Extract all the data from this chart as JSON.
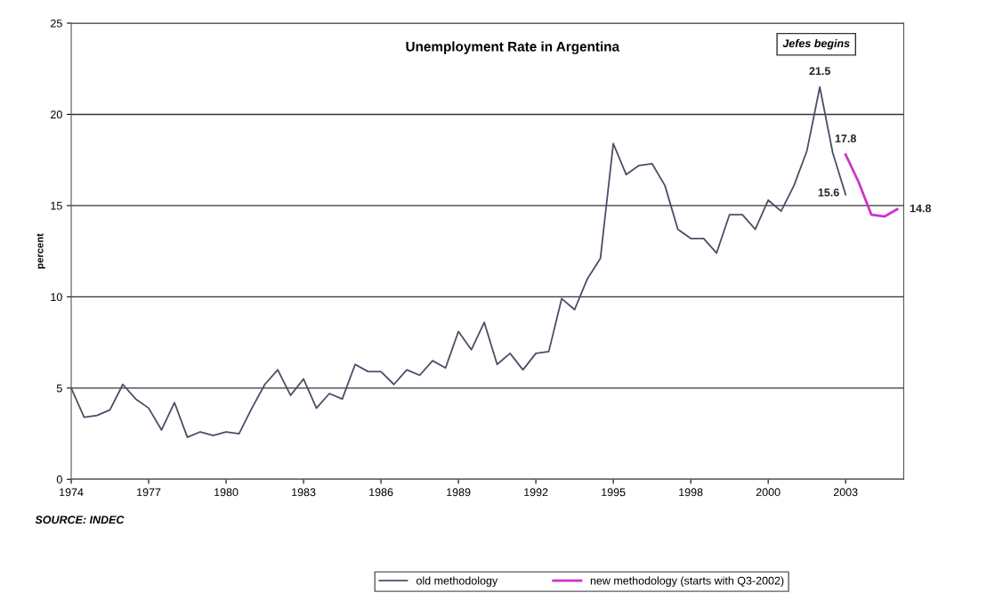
{
  "chart_data": {
    "type": "line",
    "title": "Unemployment Rate in Argentina",
    "ylabel": "percent",
    "annotations": [
      "Jefes begins",
      "SOURCE: INDEC"
    ],
    "categories": [
      "1974",
      null,
      null,
      null,
      null,
      null,
      "1977",
      null,
      null,
      null,
      null,
      null,
      "1980",
      null,
      null,
      null,
      null,
      null,
      "1983",
      null,
      null,
      null,
      null,
      null,
      "1986",
      null,
      null,
      null,
      null,
      null,
      "1989",
      null,
      null,
      null,
      null,
      null,
      "1992",
      null,
      null,
      null,
      null,
      null,
      "1995",
      null,
      null,
      null,
      null,
      null,
      "1998",
      null,
      null,
      null,
      null,
      null,
      "2000",
      null,
      null,
      null,
      null,
      null,
      "2003",
      null,
      null,
      null,
      null
    ],
    "series": [
      {
        "name": "old methodology",
        "color": "#4a4f66",
        "values": [
          5.0,
          3.4,
          3.5,
          3.8,
          5.2,
          4.4,
          3.9,
          2.7,
          4.2,
          2.3,
          2.6,
          2.4,
          2.6,
          2.5,
          3.9,
          5.2,
          6.0,
          4.6,
          5.5,
          3.9,
          4.7,
          4.4,
          6.3,
          5.9,
          5.9,
          5.2,
          6.0,
          5.7,
          6.5,
          6.1,
          8.1,
          7.1,
          8.6,
          6.3,
          6.9,
          6.0,
          6.9,
          7.0,
          9.9,
          9.3,
          11.0,
          12.1,
          18.4,
          16.7,
          17.2,
          17.3,
          16.1,
          13.7,
          13.2,
          13.2,
          12.4,
          14.5,
          14.5,
          13.7,
          15.3,
          14.7,
          16.1,
          18.0,
          21.5,
          17.9,
          15.6,
          null,
          null,
          null,
          null
        ],
        "value_labels": [
          null,
          null,
          null,
          null,
          null,
          null,
          null,
          null,
          null,
          null,
          null,
          null,
          null,
          null,
          null,
          null,
          null,
          null,
          null,
          null,
          null,
          null,
          null,
          null,
          null,
          null,
          null,
          null,
          null,
          null,
          null,
          null,
          null,
          null,
          null,
          null,
          null,
          null,
          null,
          null,
          null,
          null,
          null,
          null,
          null,
          null,
          null,
          null,
          null,
          null,
          null,
          null,
          null,
          null,
          null,
          null,
          null,
          null,
          "21.5",
          null,
          "15.6",
          null,
          null,
          null,
          null
        ]
      },
      {
        "name": "new methodology (starts with Q3-2002)",
        "color": "#cc33cc",
        "values": [
          null,
          null,
          null,
          null,
          null,
          null,
          null,
          null,
          null,
          null,
          null,
          null,
          null,
          null,
          null,
          null,
          null,
          null,
          null,
          null,
          null,
          null,
          null,
          null,
          null,
          null,
          null,
          null,
          null,
          null,
          null,
          null,
          null,
          null,
          null,
          null,
          null,
          null,
          null,
          null,
          null,
          null,
          null,
          null,
          null,
          null,
          null,
          null,
          null,
          null,
          null,
          null,
          null,
          null,
          null,
          null,
          null,
          null,
          null,
          null,
          17.8,
          16.3,
          14.5,
          14.4,
          14.8
        ],
        "value_labels": [
          null,
          null,
          null,
          null,
          null,
          null,
          null,
          null,
          null,
          null,
          null,
          null,
          null,
          null,
          null,
          null,
          null,
          null,
          null,
          null,
          null,
          null,
          null,
          null,
          null,
          null,
          null,
          null,
          null,
          null,
          null,
          null,
          null,
          null,
          null,
          null,
          null,
          null,
          null,
          null,
          null,
          null,
          null,
          null,
          null,
          null,
          null,
          null,
          null,
          null,
          null,
          null,
          null,
          null,
          null,
          null,
          null,
          null,
          null,
          null,
          "17.8",
          null,
          null,
          null,
          "14.8"
        ]
      }
    ],
    "ylim": [
      0,
      25
    ],
    "yticks": [
      0,
      5,
      10,
      15,
      20,
      25
    ],
    "grid": "y",
    "legend": "bottom",
    "marker": "none",
    "line_style": "solid"
  }
}
